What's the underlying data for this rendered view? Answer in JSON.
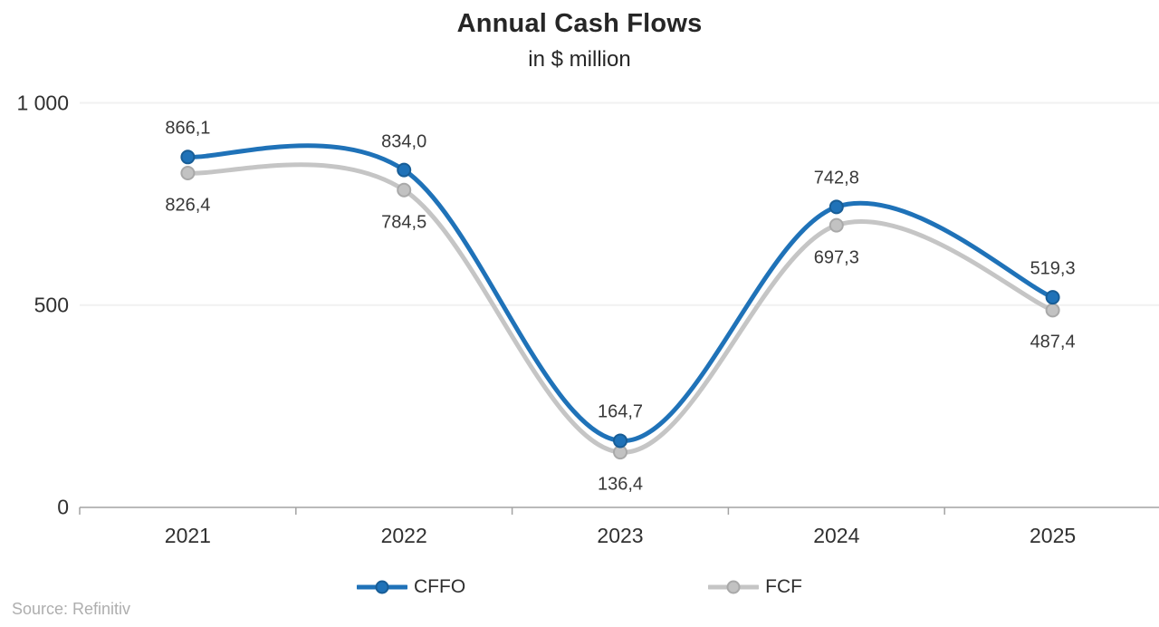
{
  "title": "Annual Cash Flows",
  "subtitle": "in $ million",
  "source_note": "Source: Refinitiv",
  "colors": {
    "cffo_line": "#1f72b8",
    "cffo_marker_fill": "#1f72b8",
    "cffo_marker_stroke": "#185d96",
    "fcf_line": "#c5c5c5",
    "fcf_marker_fill": "#c2c2c2",
    "fcf_marker_stroke": "#a9a9a9",
    "gridline": "#f1f1f1",
    "axis": "#a3a3a3",
    "text_dark": "#262626",
    "data_label": "#383838",
    "source_text": "#aeaeae"
  },
  "chart_data": {
    "type": "line",
    "smooth": true,
    "categories": [
      "2021",
      "2022",
      "2023",
      "2024",
      "2025"
    ],
    "series": [
      {
        "name": "CFFO",
        "values": [
          866.1,
          834.0,
          164.7,
          742.8,
          519.3
        ],
        "labels": [
          "866,1",
          "834,0",
          "164,7",
          "742,8",
          "519,3"
        ],
        "label_position": "above"
      },
      {
        "name": "FCF",
        "values": [
          826.4,
          784.5,
          136.4,
          697.3,
          487.4
        ],
        "labels": [
          "826,4",
          "784,5",
          "136,4",
          "697,3",
          "487,4"
        ],
        "label_position": "below"
      }
    ],
    "ylim": [
      0,
      1000
    ],
    "yticks": [
      {
        "value": 0,
        "label": "0"
      },
      {
        "value": 500,
        "label": "500"
      },
      {
        "value": 1000,
        "label": "1 000"
      }
    ],
    "grid": "horizontal",
    "legend_position": "bottom"
  }
}
